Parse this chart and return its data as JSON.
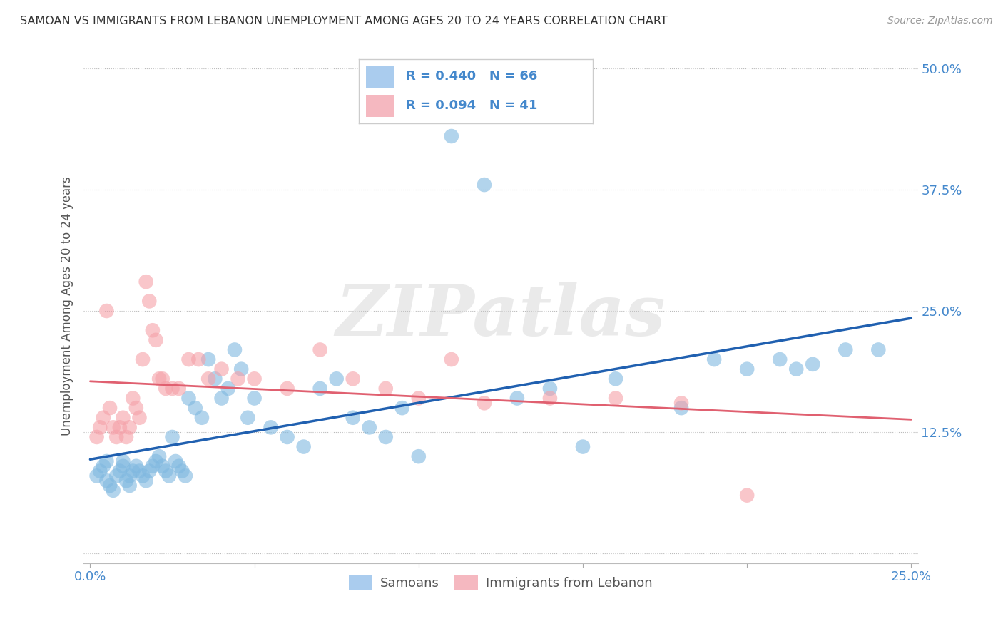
{
  "title": "SAMOAN VS IMMIGRANTS FROM LEBANON UNEMPLOYMENT AMONG AGES 20 TO 24 YEARS CORRELATION CHART",
  "source": "Source: ZipAtlas.com",
  "watermark": "ZIPatlas",
  "ylabel": "Unemployment Among Ages 20 to 24 years",
  "xlim": [
    -0.002,
    0.252
  ],
  "ylim": [
    -0.01,
    0.52
  ],
  "xticks": [
    0.0,
    0.05,
    0.1,
    0.15,
    0.2,
    0.25
  ],
  "yticks": [
    0.0,
    0.125,
    0.25,
    0.375,
    0.5
  ],
  "xtick_labels": [
    "0.0%",
    "",
    "",
    "",
    "",
    "25.0%"
  ],
  "ytick_labels": [
    "",
    "12.5%",
    "25.0%",
    "37.5%",
    "50.0%"
  ],
  "legend_labels": [
    "Samoans",
    "Immigrants from Lebanon"
  ],
  "R_samoan": 0.44,
  "N_samoan": 66,
  "R_lebanon": 0.094,
  "N_lebanon": 41,
  "blue_color": "#7fb8e0",
  "pink_color": "#f5a0a8",
  "blue_line_color": "#2060b0",
  "pink_line_color": "#e06070",
  "blue_legend_color": "#aaccee",
  "pink_legend_color": "#f5b8c0",
  "tick_label_color": "#4488cc",
  "samoan_x": [
    0.002,
    0.003,
    0.004,
    0.005,
    0.005,
    0.006,
    0.007,
    0.008,
    0.009,
    0.01,
    0.01,
    0.011,
    0.012,
    0.012,
    0.013,
    0.014,
    0.015,
    0.016,
    0.017,
    0.018,
    0.019,
    0.02,
    0.021,
    0.022,
    0.023,
    0.024,
    0.025,
    0.026,
    0.027,
    0.028,
    0.029,
    0.03,
    0.032,
    0.034,
    0.036,
    0.038,
    0.04,
    0.042,
    0.044,
    0.046,
    0.048,
    0.05,
    0.055,
    0.06,
    0.065,
    0.07,
    0.075,
    0.08,
    0.085,
    0.09,
    0.095,
    0.1,
    0.11,
    0.12,
    0.13,
    0.14,
    0.15,
    0.16,
    0.18,
    0.19,
    0.2,
    0.21,
    0.215,
    0.22,
    0.23,
    0.24
  ],
  "samoan_y": [
    0.08,
    0.085,
    0.09,
    0.095,
    0.075,
    0.07,
    0.065,
    0.08,
    0.085,
    0.09,
    0.095,
    0.075,
    0.07,
    0.08,
    0.085,
    0.09,
    0.085,
    0.08,
    0.075,
    0.085,
    0.09,
    0.095,
    0.1,
    0.09,
    0.085,
    0.08,
    0.12,
    0.095,
    0.09,
    0.085,
    0.08,
    0.16,
    0.15,
    0.14,
    0.2,
    0.18,
    0.16,
    0.17,
    0.21,
    0.19,
    0.14,
    0.16,
    0.13,
    0.12,
    0.11,
    0.17,
    0.18,
    0.14,
    0.13,
    0.12,
    0.15,
    0.1,
    0.43,
    0.38,
    0.16,
    0.17,
    0.11,
    0.18,
    0.15,
    0.2,
    0.19,
    0.2,
    0.19,
    0.195,
    0.21,
    0.21
  ],
  "lebanon_x": [
    0.002,
    0.003,
    0.004,
    0.005,
    0.006,
    0.007,
    0.008,
    0.009,
    0.01,
    0.011,
    0.012,
    0.013,
    0.014,
    0.015,
    0.016,
    0.017,
    0.018,
    0.019,
    0.02,
    0.021,
    0.022,
    0.023,
    0.025,
    0.027,
    0.03,
    0.033,
    0.036,
    0.04,
    0.045,
    0.05,
    0.06,
    0.07,
    0.08,
    0.09,
    0.1,
    0.11,
    0.12,
    0.14,
    0.16,
    0.18,
    0.2
  ],
  "lebanon_y": [
    0.12,
    0.13,
    0.14,
    0.25,
    0.15,
    0.13,
    0.12,
    0.13,
    0.14,
    0.12,
    0.13,
    0.16,
    0.15,
    0.14,
    0.2,
    0.28,
    0.26,
    0.23,
    0.22,
    0.18,
    0.18,
    0.17,
    0.17,
    0.17,
    0.2,
    0.2,
    0.18,
    0.19,
    0.18,
    0.18,
    0.17,
    0.21,
    0.18,
    0.17,
    0.16,
    0.2,
    0.155,
    0.16,
    0.16,
    0.155,
    0.06
  ]
}
